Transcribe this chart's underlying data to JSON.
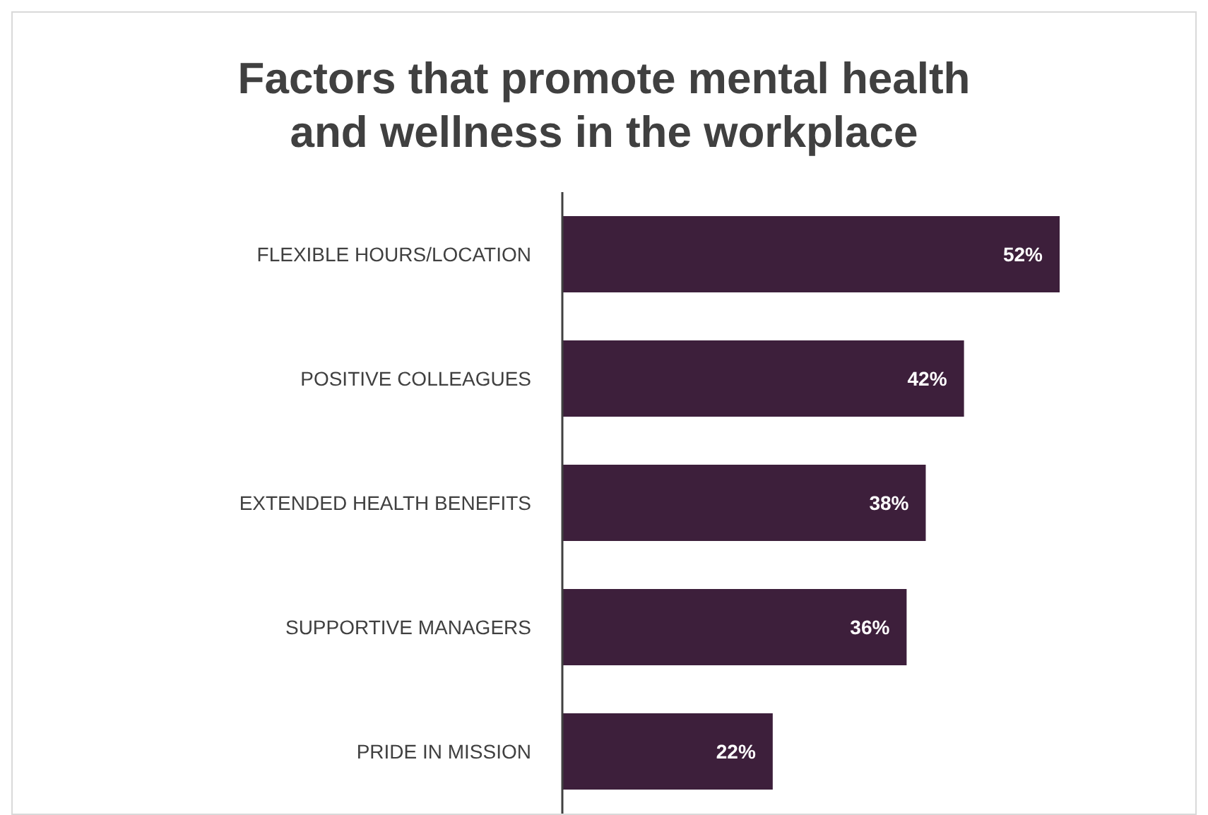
{
  "chart_data": {
    "type": "bar",
    "orientation": "horizontal",
    "title": "Factors that promote mental health and wellness in the workplace",
    "categories": [
      "FLEXIBLE HOURS/LOCATION",
      "POSITIVE COLLEAGUES",
      "EXTENDED HEALTH BENEFITS",
      "SUPPORTIVE MANAGERS",
      "PRIDE IN MISSION"
    ],
    "values": [
      52,
      42,
      38,
      36,
      22
    ],
    "value_labels": [
      "52%",
      "42%",
      "38%",
      "36%",
      "22%"
    ],
    "color": "#3d1f3b",
    "grid": false,
    "legend": false
  }
}
